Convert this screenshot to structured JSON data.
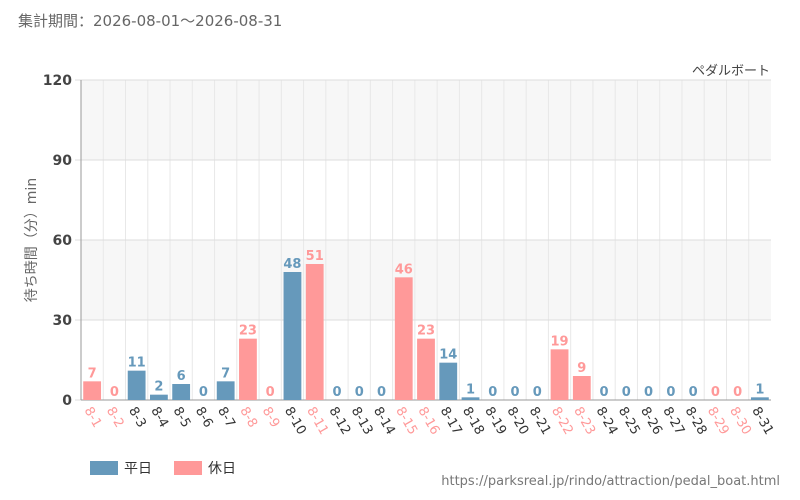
{
  "header": {
    "title": "集計期間：2026-08-01～2026-08-31",
    "attraction_label": "ペダルボート"
  },
  "legend": {
    "weekday_label": "平日",
    "holiday_label": "休日"
  },
  "footer": {
    "url": "https://parksreal.jp/rindo/attraction/pedal_boat.html"
  },
  "colors": {
    "weekday": "#6699bb",
    "holiday": "#ff9999"
  },
  "chart_data": {
    "type": "bar",
    "title": "ペダルボート",
    "ylabel": "待ち時間（分）min",
    "xlabel": "",
    "ylim": [
      0,
      120
    ],
    "yticks": [
      0,
      30,
      60,
      90,
      120
    ],
    "grid": true,
    "categories": [
      "8-1",
      "8-2",
      "8-3",
      "8-4",
      "8-5",
      "8-6",
      "8-7",
      "8-8",
      "8-9",
      "8-10",
      "8-11",
      "8-12",
      "8-13",
      "8-14",
      "8-15",
      "8-16",
      "8-17",
      "8-18",
      "8-19",
      "8-20",
      "8-21",
      "8-22",
      "8-23",
      "8-24",
      "8-25",
      "8-26",
      "8-27",
      "8-28",
      "8-29",
      "8-30",
      "8-31"
    ],
    "values": [
      7,
      0,
      11,
      2,
      6,
      0,
      7,
      23,
      0,
      48,
      51,
      0,
      0,
      0,
      46,
      23,
      14,
      1,
      0,
      0,
      0,
      19,
      9,
      0,
      0,
      0,
      0,
      0,
      0,
      0,
      1
    ],
    "day_type": [
      "holiday",
      "holiday",
      "weekday",
      "weekday",
      "weekday",
      "weekday",
      "weekday",
      "holiday",
      "holiday",
      "weekday",
      "holiday",
      "weekday",
      "weekday",
      "weekday",
      "holiday",
      "holiday",
      "weekday",
      "weekday",
      "weekday",
      "weekday",
      "weekday",
      "holiday",
      "holiday",
      "weekday",
      "weekday",
      "weekday",
      "weekday",
      "weekday",
      "holiday",
      "holiday",
      "weekday"
    ],
    "series": [
      {
        "name": "平日"
      },
      {
        "name": "休日"
      }
    ]
  }
}
